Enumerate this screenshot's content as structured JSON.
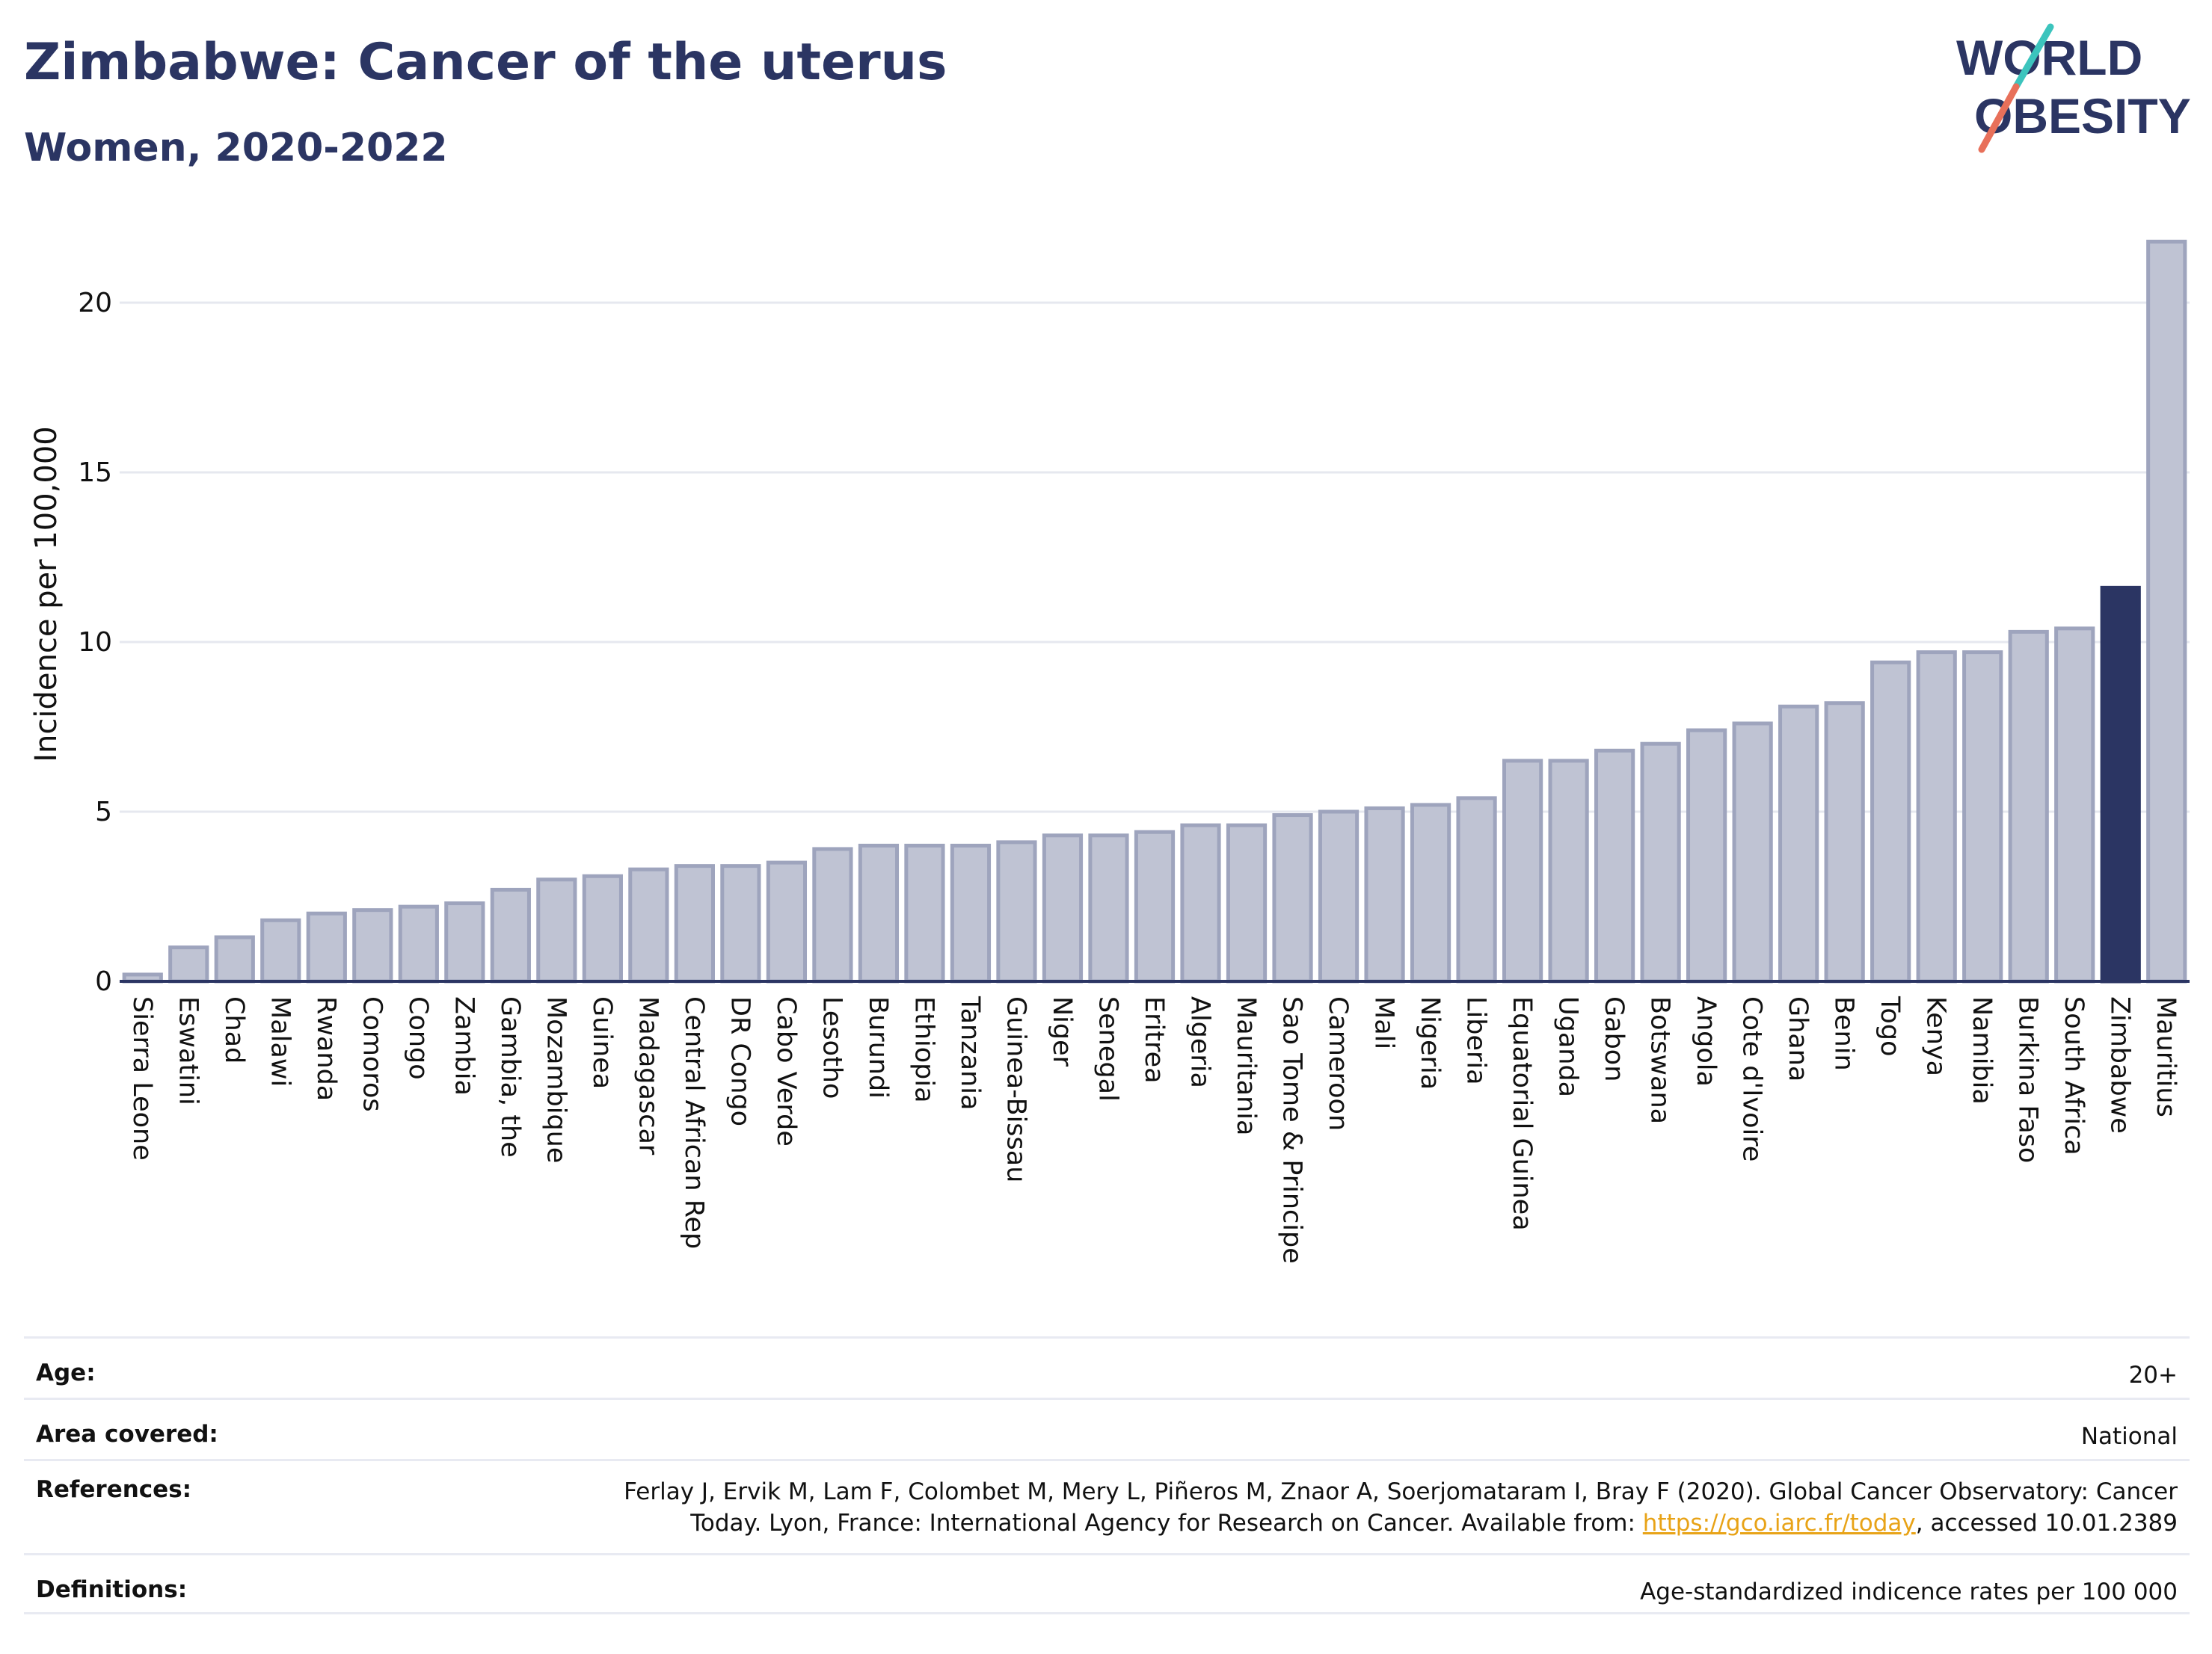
{
  "header": {
    "title": "Zimbabwe: Cancer of the uterus",
    "subtitle": "Women, 2020-2022"
  },
  "logo": {
    "line1": "WORLD",
    "line2": "OBESITY",
    "accent_colors": [
      "#3cc4bd",
      "#e8705a"
    ]
  },
  "chart_data": {
    "type": "bar",
    "title": "",
    "xlabel": "",
    "ylabel": "Incidence per 100,000",
    "ylim": [
      0,
      22
    ],
    "yticks": [
      0,
      5,
      10,
      15,
      20
    ],
    "grid": true,
    "highlight_category": "Zimbabwe",
    "colors": {
      "bar": "#bfc3d3",
      "bar_border": "#9ea4bd",
      "highlight": "#2b3563"
    },
    "categories": [
      "Sierra Leone",
      "Eswatini",
      "Chad",
      "Malawi",
      "Rwanda",
      "Comoros",
      "Congo",
      "Zambia",
      "Gambia, the",
      "Mozambique",
      "Guinea",
      "Madagascar",
      "Central African Rep",
      "DR Congo",
      "Cabo Verde",
      "Lesotho",
      "Burundi",
      "Ethiopia",
      "Tanzania",
      "Guinea-Bissau",
      "Niger",
      "Senegal",
      "Eritrea",
      "Algeria",
      "Mauritania",
      "Sao Tome & Principe",
      "Cameroon",
      "Mali",
      "Nigeria",
      "Liberia",
      "Equatorial Guinea",
      "Uganda",
      "Gabon",
      "Botswana",
      "Angola",
      "Cote d'Ivoire",
      "Ghana",
      "Benin",
      "Togo",
      "Kenya",
      "Namibia",
      "Burkina Faso",
      "South Africa",
      "Zimbabwe",
      "Mauritius"
    ],
    "values": [
      0.2,
      1.0,
      1.3,
      1.8,
      2.0,
      2.1,
      2.2,
      2.3,
      2.7,
      3.0,
      3.1,
      3.3,
      3.4,
      3.4,
      3.5,
      3.9,
      4.0,
      4.0,
      4.0,
      4.1,
      4.3,
      4.3,
      4.4,
      4.6,
      4.6,
      4.9,
      5.0,
      5.1,
      5.2,
      5.4,
      6.5,
      6.5,
      6.8,
      7.0,
      7.4,
      7.6,
      8.1,
      8.2,
      9.4,
      9.7,
      9.7,
      10.3,
      10.4,
      11.6,
      21.8
    ]
  },
  "info": {
    "age": {
      "label": "Age:",
      "value": "20+"
    },
    "area": {
      "label": "Area covered:",
      "value": "National"
    },
    "references": {
      "label": "References:",
      "text_line1": "Ferlay J, Ervik M, Lam F, Colombet M, Mery L, Piñeros M, Znaor A, Soerjomataram I, Bray F (2020). Global Cancer Observatory: Cancer",
      "text_before_link": "Today. Lyon, France: International Agency for Research on Cancer. Available from: ",
      "link": "https://gco.iarc.fr/today",
      "text_after_link": ", accessed 10.01.2389"
    },
    "definitions": {
      "label": "Definitions:",
      "value": "Age-standardized indicence rates per 100 000"
    }
  }
}
